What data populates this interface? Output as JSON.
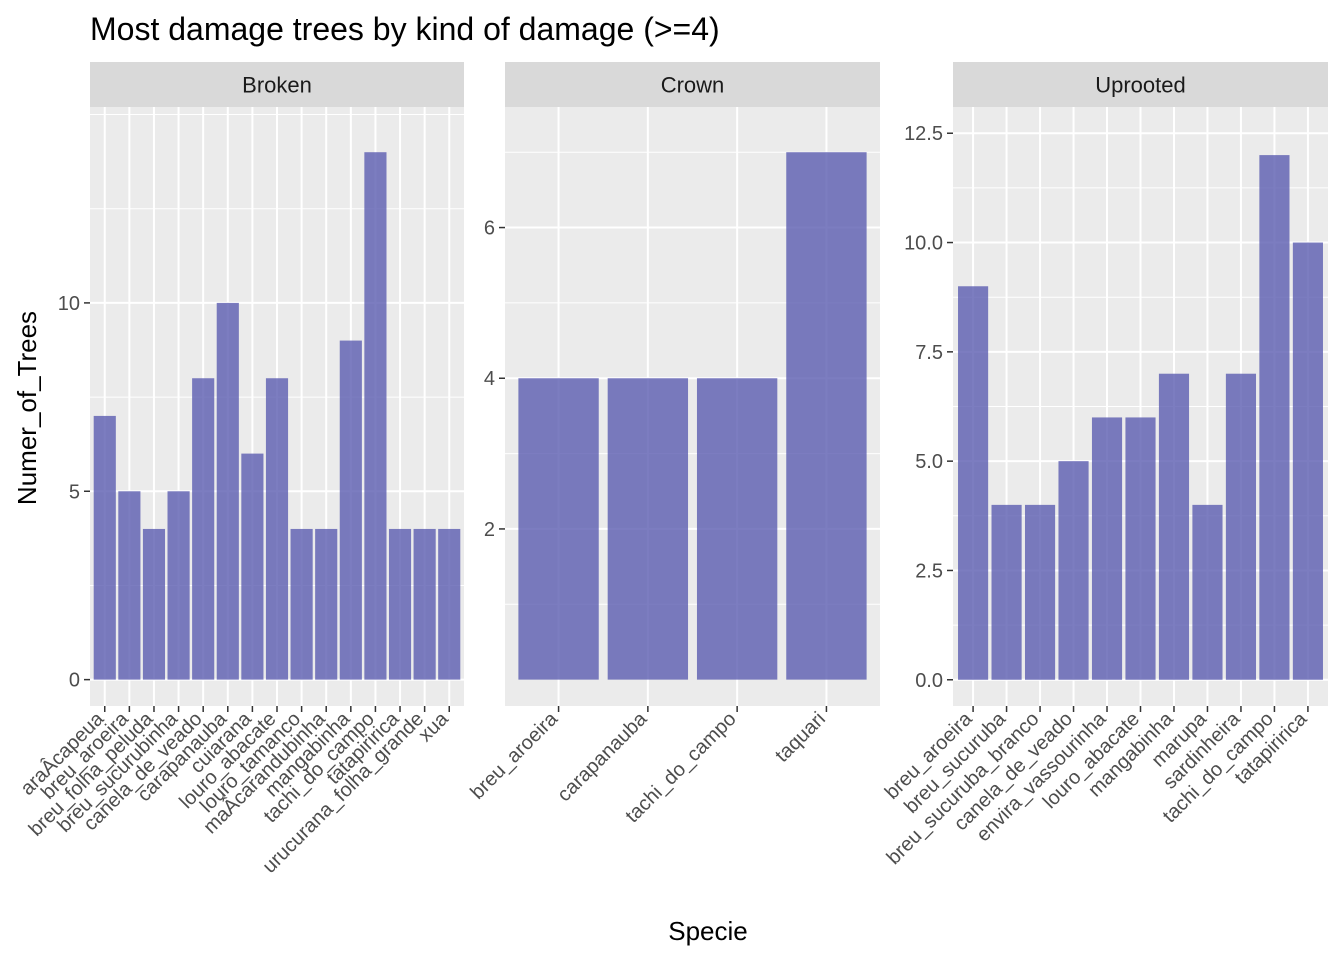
{
  "chart_data": {
    "type": "bar",
    "title": "Most damage trees by kind of damage (>=4)",
    "xlabel": "Specie",
    "ylabel": "Numer_of_Trees",
    "bar_color": "#5b5db0",
    "panel_background": "#ebebeb",
    "strip_background": "#d9d9d9",
    "grid": true,
    "facets": [
      {
        "name": "Broken",
        "categories": [
          "araÂcapeua",
          "breu_aroeira",
          "breu_folha_peluda",
          "breu_sucurubinha",
          "canela_de_veado",
          "carapanauba",
          "cuiarana",
          "louro_abacate",
          "louro_tamanco",
          "maÂcarandubinha",
          "mangabinha",
          "tachi_do_campo",
          "tatapiririca",
          "urucurana_folha_grande",
          "xua"
        ],
        "values": [
          7,
          5,
          4,
          5,
          8,
          10,
          6,
          8,
          4,
          4,
          9,
          14,
          4,
          4,
          4
        ],
        "ylim": [
          -0.7,
          15.2
        ],
        "yticks": [
          0,
          5,
          10
        ],
        "yticklabels": [
          "0",
          "5",
          "10"
        ]
      },
      {
        "name": "Crown",
        "categories": [
          "breu_aroeira",
          "carapanauba",
          "tachi_do_campo",
          "taquari"
        ],
        "values": [
          4,
          4,
          4,
          7
        ],
        "ylim": [
          -0.35,
          7.6
        ],
        "yticks": [
          2,
          4,
          6
        ],
        "yticklabels": [
          "2",
          "4",
          "6"
        ]
      },
      {
        "name": "Uprooted",
        "categories": [
          "breu_aroeira",
          "breu_sucuruba",
          "breu_sucuruba_branco",
          "canela_de_veado",
          "envira_vassourinha",
          "louro_abacate",
          "mangabinha",
          "marupa",
          "sardinheira",
          "tachi_do_campo",
          "tatapiririca"
        ],
        "values": [
          9,
          4,
          4,
          5,
          6,
          6,
          7,
          4,
          7,
          12,
          10
        ],
        "ylim": [
          -0.6,
          13.1
        ],
        "yticks": [
          0,
          2.5,
          5,
          7.5,
          10,
          12.5
        ],
        "yticklabels": [
          "0.0",
          "2.5",
          "5.0",
          "7.5",
          "10.0",
          "12.5"
        ]
      }
    ]
  }
}
